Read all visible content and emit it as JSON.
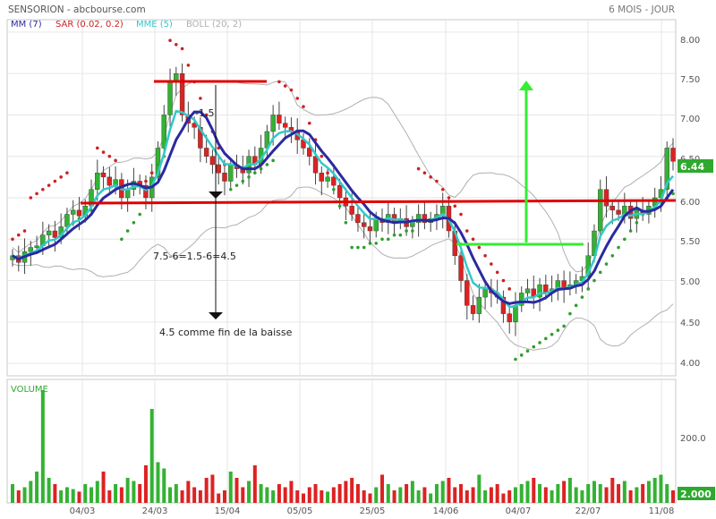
{
  "header": {
    "title": "SENSORION - abcbourse.com",
    "period": "6 MOIS - JOUR"
  },
  "legend": [
    {
      "label": "MM (7)",
      "color": "#2a2aa0"
    },
    {
      "label": "SAR (0.02, 0.2)",
      "color": "#cc2222"
    },
    {
      "label": "MME (5)",
      "color": "#33c9c9"
    },
    {
      "label": "BOLL (20, 2)",
      "color": "#b0b0b0"
    }
  ],
  "price_axis": {
    "ticks": [
      "8.00",
      "7.50",
      "7.00",
      "6.50",
      "6.00",
      "5.50",
      "5.00",
      "4.50",
      "4.00"
    ],
    "current": "6.44"
  },
  "volume_panel": {
    "title": "VOLUME",
    "tick": "200.0",
    "current": "2.000"
  },
  "dates": [
    "04/03",
    "24/03",
    "15/04",
    "05/05",
    "25/05",
    "14/06",
    "04/07",
    "22/07",
    "11/08"
  ],
  "annotations": {
    "minus": "-1.5",
    "calc": "7.5-6=1.5-6=4.5",
    "target": "4.5 comme fin de la baisse"
  },
  "colors": {
    "up": "#33b233",
    "down": "#dd2222",
    "mm": "#2a2aa0",
    "mme": "#33c9c9",
    "boll": "#b0b0b0",
    "sar": "#cc2222",
    "sar_up": "#2e9e2e",
    "red_line": "#e00000",
    "green_line": "#33ee33"
  },
  "chart_data": {
    "type": "candlestick",
    "ylim": [
      3.85,
      8.15
    ],
    "closes": [
      5.3,
      5.22,
      5.35,
      5.4,
      5.42,
      5.55,
      5.6,
      5.52,
      5.65,
      5.8,
      5.85,
      5.78,
      5.9,
      6.1,
      6.3,
      6.25,
      6.15,
      6.22,
      6.0,
      6.1,
      6.2,
      6.15,
      6.0,
      6.25,
      6.6,
      7.0,
      7.4,
      7.5,
      7.0,
      6.9,
      6.85,
      6.6,
      6.5,
      6.4,
      6.3,
      6.2,
      6.4,
      6.35,
      6.3,
      6.5,
      6.4,
      6.6,
      6.8,
      7.0,
      6.9,
      6.85,
      6.8,
      6.7,
      6.6,
      6.5,
      6.3,
      6.2,
      6.25,
      6.15,
      6.0,
      5.9,
      5.8,
      5.7,
      5.65,
      5.6,
      5.75,
      5.7,
      5.8,
      5.7,
      5.75,
      5.65,
      5.7,
      5.8,
      5.7,
      5.75,
      5.8,
      5.9,
      5.6,
      5.3,
      5.0,
      4.7,
      4.6,
      4.8,
      4.9,
      4.85,
      4.8,
      4.6,
      4.5,
      4.7,
      4.85,
      4.9,
      4.8,
      4.95,
      4.85,
      4.9,
      5.0,
      4.9,
      4.95,
      5.0,
      5.05,
      5.3,
      5.6,
      6.1,
      5.9,
      5.85,
      5.8,
      5.9,
      5.75,
      5.85,
      5.8,
      5.9,
      6.0,
      6.1,
      6.6,
      6.44
    ],
    "volumes": [
      30,
      20,
      25,
      35,
      50,
      180,
      40,
      30,
      20,
      25,
      22,
      18,
      30,
      25,
      35,
      50,
      20,
      30,
      25,
      40,
      35,
      30,
      60,
      150,
      65,
      55,
      25,
      30,
      20,
      35,
      25,
      20,
      40,
      45,
      15,
      20,
      50,
      40,
      25,
      35,
      60,
      30,
      25,
      20,
      30,
      25,
      35,
      20,
      15,
      25,
      30,
      20,
      18,
      25,
      30,
      35,
      40,
      30,
      20,
      15,
      25,
      45,
      30,
      20,
      25,
      30,
      35,
      20,
      25,
      15,
      30,
      35,
      40,
      25,
      30,
      20,
      25,
      45,
      20,
      25,
      30,
      15,
      20,
      25,
      30,
      35,
      40,
      30,
      25,
      20,
      30,
      35,
      40,
      25,
      20,
      30,
      35,
      30,
      25,
      40,
      30,
      35,
      20,
      25,
      30,
      35,
      40,
      45,
      30,
      20
    ],
    "sar": [
      5.5,
      5.55,
      5.6,
      6.0,
      6.05,
      6.1,
      6.15,
      6.2,
      6.25,
      6.3,
      5.7,
      5.75,
      5.8,
      5.85,
      6.6,
      6.55,
      6.5,
      6.45,
      5.5,
      5.6,
      5.7,
      5.8,
      6.2,
      6.3,
      6.4,
      6.5,
      7.9,
      7.85,
      7.8,
      7.6,
      7.4,
      7.2,
      7.0,
      6.8,
      6.6,
      6.4,
      6.1,
      6.15,
      6.2,
      6.25,
      6.3,
      6.35,
      6.4,
      6.45,
      7.4,
      7.35,
      7.3,
      7.2,
      7.1,
      6.9,
      6.7,
      6.5,
      6.3,
      6.1,
      5.9,
      5.7,
      5.4,
      5.4,
      5.4,
      5.45,
      5.45,
      5.5,
      5.5,
      5.55,
      5.55,
      5.6,
      5.6,
      6.35,
      6.3,
      6.25,
      6.2,
      6.1,
      6.0,
      5.9,
      5.8,
      5.6,
      5.5,
      5.4,
      5.3,
      5.2,
      5.1,
      5.0,
      4.9,
      4.05,
      4.1,
      4.15,
      4.2,
      4.25,
      4.3,
      4.35,
      4.4,
      4.45,
      4.6,
      4.7,
      4.8,
      4.9,
      5.0,
      5.1,
      5.2,
      5.3,
      5.4,
      5.5,
      5.6,
      5.7,
      5.8,
      5.85,
      5.9,
      5.95,
      6.0,
      6.05
    ]
  }
}
